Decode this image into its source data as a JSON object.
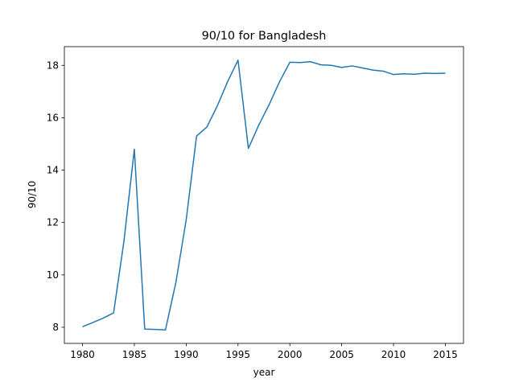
{
  "chart_data": {
    "type": "line",
    "title": "90/10 for Bangladesh",
    "x_label": "year",
    "y_label": "90/10",
    "x": [
      1980,
      1981,
      1982,
      1983,
      1984,
      1985,
      1986,
      1987,
      1988,
      1989,
      1990,
      1991,
      1992,
      1993,
      1994,
      1995,
      1996,
      1997,
      1998,
      1999,
      2000,
      2001,
      2002,
      2003,
      2004,
      2005,
      2006,
      2007,
      2008,
      2009,
      2010,
      2011,
      2012,
      2013,
      2014,
      2015
    ],
    "values": [
      8.02,
      8.18,
      8.35,
      8.55,
      11.3,
      14.8,
      7.93,
      7.92,
      7.9,
      9.7,
      12.1,
      15.3,
      15.65,
      16.45,
      17.38,
      18.2,
      14.83,
      15.72,
      16.5,
      17.37,
      18.12,
      18.11,
      18.14,
      18.02,
      18.0,
      17.92,
      17.98,
      17.9,
      17.82,
      17.78,
      17.65,
      17.68,
      17.66,
      17.7,
      17.69,
      17.7
    ],
    "color": "#1f77b4",
    "xlim": [
      1978.25,
      2016.75
    ],
    "xticks": [
      1980,
      1985,
      1990,
      1995,
      2000,
      2005,
      2010,
      2015
    ],
    "ylim": [
      7.385,
      18.715
    ],
    "yticks": [
      8,
      10,
      12,
      14,
      16,
      18
    ],
    "grid": false
  }
}
